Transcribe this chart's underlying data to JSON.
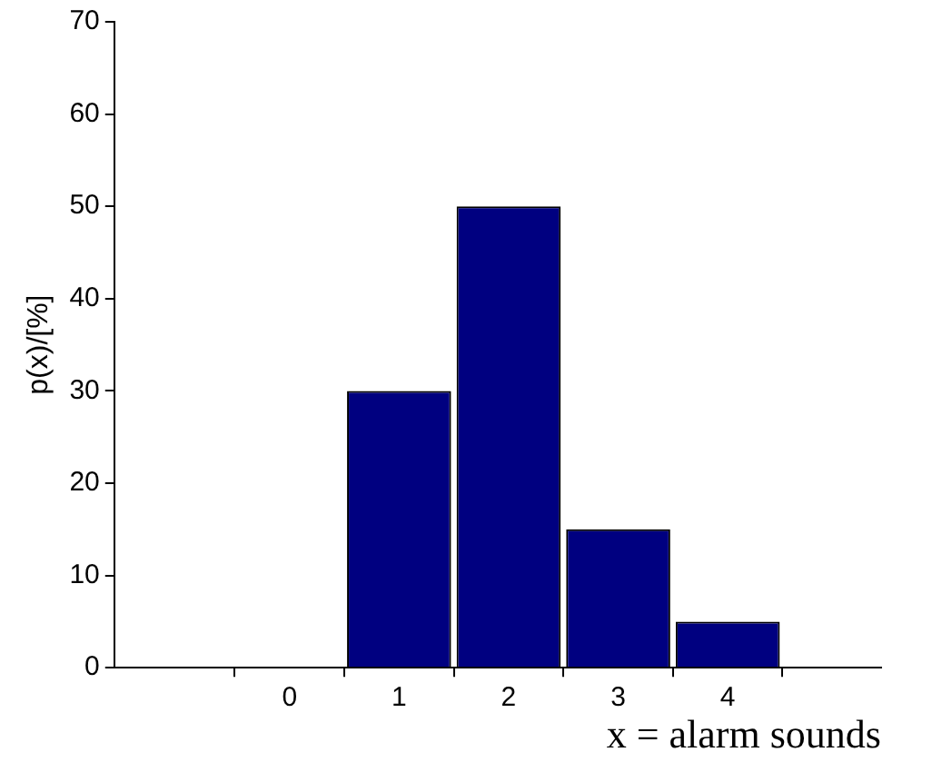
{
  "chart_data": {
    "type": "bar",
    "xlabel": "x = alarm sounds",
    "ylabel": "p(x)/[%]",
    "x": [
      0,
      1,
      2,
      3,
      4
    ],
    "values": [
      0,
      30,
      50,
      15,
      5
    ],
    "color": "#000080",
    "xlim": [
      -1.6,
      5.4
    ],
    "xticks": [
      0,
      1,
      2,
      3,
      4
    ],
    "ylim": [
      0,
      70
    ],
    "yticks": [
      0,
      10,
      20,
      30,
      40,
      50,
      60,
      70
    ],
    "grid": false,
    "legend": false
  }
}
